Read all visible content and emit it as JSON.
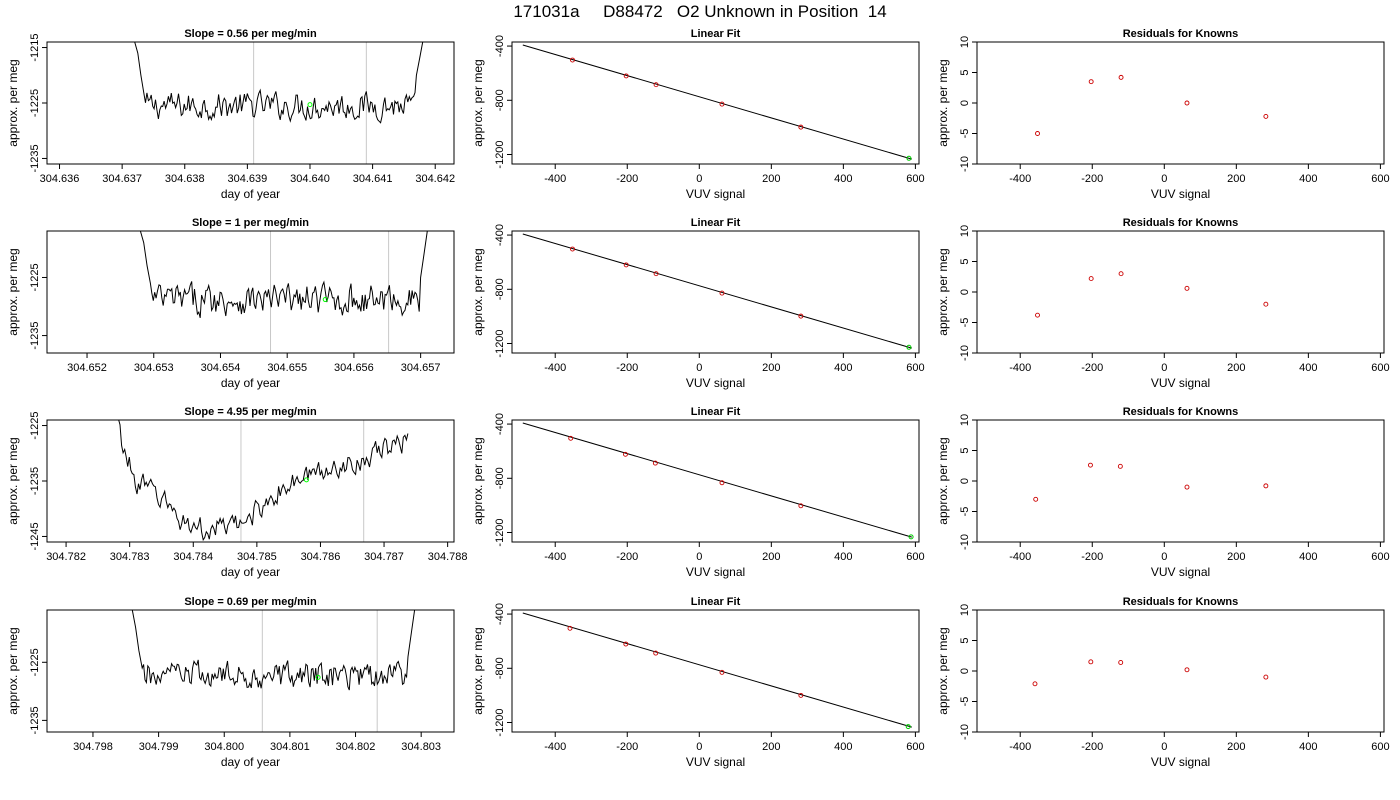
{
  "figure": {
    "title": "171031a     D88472   O2 Unknown in Position  14"
  },
  "chart_data": [
    {
      "type": "line",
      "title": "Slope =  0.56  per meg/min",
      "xlabel": "day of year",
      "ylabel": "approx. per meg",
      "xlim": [
        304.6358,
        304.6423
      ],
      "ylim": [
        -1236,
        -1214
      ],
      "xticks": [
        "304.636",
        "304.637",
        "304.638",
        "304.639",
        "304.640",
        "304.641",
        "304.642"
      ],
      "yticks": [
        "-1215",
        "-1225",
        "-1235"
      ],
      "ytick_values": [
        -1215,
        -1225,
        -1235
      ],
      "window": [
        304.6391,
        304.6409
      ],
      "series_color": "#000000",
      "trace": {
        "x_start": 304.6372,
        "x_end": 304.6418,
        "baseline": -1225.5,
        "amplitude": 2.2,
        "trend": 0,
        "left_edge": [
          [
            304.6372,
            -1214
          ],
          [
            304.63725,
            -1216
          ],
          [
            304.6373,
            -1220
          ],
          [
            304.63735,
            -1223.5
          ]
        ],
        "right_edge": [
          [
            304.6417,
            -1220
          ],
          [
            304.64175,
            -1217
          ],
          [
            304.6418,
            -1214
          ]
        ]
      },
      "unknown_point": {
        "x": 304.64,
        "y": -1225.3,
        "color": "#00ff00"
      }
    },
    {
      "type": "line",
      "title": "Linear Fit",
      "xlabel": "VUV signal",
      "ylabel": "approx. per meg",
      "xlim": [
        -520,
        610
      ],
      "ylim": [
        -1270,
        -370
      ],
      "xticks": [
        "-400",
        "-200",
        "0",
        "200",
        "400",
        "600"
      ],
      "yticks": [
        "-400",
        "-800",
        "-1200"
      ],
      "ytick_values": [
        -400,
        -800,
        -1200
      ],
      "fit_line": {
        "x": [
          -490,
          590
        ],
        "y": [
          -392,
          -1234
        ]
      },
      "points": {
        "x": [
          -352,
          -203,
          -120,
          63,
          282
        ],
        "y": [
          -503,
          -620,
          -685,
          -828,
          -998
        ],
        "color": "#cc0000"
      },
      "unknown_point": {
        "x": 582,
        "y": -1228,
        "color": "#00cc00"
      }
    },
    {
      "type": "scatter",
      "title": "Residuals for Knowns",
      "xlabel": "VUV signal",
      "ylabel": "approx. per meg",
      "xlim": [
        -520,
        610
      ],
      "ylim": [
        -10,
        10
      ],
      "xticks": [
        "-400",
        "-200",
        "0",
        "200",
        "400",
        "600"
      ],
      "yticks": [
        "10",
        "5",
        "0",
        "-5",
        "-10"
      ],
      "ytick_values": [
        10,
        5,
        0,
        -5,
        -10
      ],
      "points": {
        "x": [
          -352,
          -203,
          -120,
          63,
          282
        ],
        "y": [
          -5,
          3.5,
          4.2,
          0,
          -2.2
        ],
        "color": "#cc0000"
      }
    },
    {
      "type": "line",
      "title": "Slope =  1  per meg/min",
      "xlabel": "day of year",
      "ylabel": "approx. per meg",
      "xlim": [
        304.6514,
        304.6575
      ],
      "ylim": [
        -1238,
        -1217
      ],
      "xticks": [
        "304.652",
        "304.653",
        "304.654",
        "304.655",
        "304.656",
        "304.657"
      ],
      "yticks": [
        "-1225",
        "-1235"
      ],
      "ytick_values": [
        -1225,
        -1235
      ],
      "window": [
        304.65475,
        304.65652
      ],
      "series_color": "#000000",
      "trace": {
        "x_start": 304.6528,
        "x_end": 304.6571,
        "baseline": -1228.8,
        "amplitude": 2.4,
        "trend": 0,
        "left_edge": [
          [
            304.6528,
            -1217
          ],
          [
            304.65285,
            -1219
          ],
          [
            304.6529,
            -1223
          ],
          [
            304.65295,
            -1226
          ]
        ],
        "right_edge": [
          [
            304.657,
            -1225
          ],
          [
            304.65705,
            -1221
          ],
          [
            304.6571,
            -1217
          ]
        ]
      },
      "unknown_point": {
        "x": 304.65557,
        "y": -1228.8,
        "color": "#00ff00"
      }
    },
    {
      "type": "line",
      "title": "Linear Fit",
      "xlabel": "VUV signal",
      "ylabel": "approx. per meg",
      "xlim": [
        -520,
        610
      ],
      "ylim": [
        -1270,
        -370
      ],
      "xticks": [
        "-400",
        "-200",
        "0",
        "200",
        "400",
        "600"
      ],
      "yticks": [
        "-400",
        "-800",
        "-1200"
      ],
      "ytick_values": [
        -400,
        -800,
        -1200
      ],
      "fit_line": {
        "x": [
          -490,
          590
        ],
        "y": [
          -392,
          -1234
        ]
      },
      "points": {
        "x": [
          -352,
          -203,
          -120,
          63,
          282
        ],
        "y": [
          -503,
          -620,
          -685,
          -828,
          -998
        ],
        "color": "#cc0000"
      },
      "unknown_point": {
        "x": 582,
        "y": -1228,
        "color": "#00cc00"
      }
    },
    {
      "type": "scatter",
      "title": "Residuals for Knowns",
      "xlabel": "VUV signal",
      "ylabel": "approx. per meg",
      "xlim": [
        -520,
        610
      ],
      "ylim": [
        -10,
        10
      ],
      "xticks": [
        "-400",
        "-200",
        "0",
        "200",
        "400",
        "600"
      ],
      "yticks": [
        "10",
        "5",
        "0",
        "-5",
        "-10"
      ],
      "ytick_values": [
        10,
        5,
        0,
        -5,
        -10
      ],
      "points": {
        "x": [
          -352,
          -203,
          -120,
          63,
          282
        ],
        "y": [
          -3.8,
          2.2,
          3,
          0.6,
          -2
        ],
        "color": "#cc0000"
      }
    },
    {
      "type": "line",
      "title": "Slope =  4.95  per meg/min",
      "xlabel": "day of year",
      "ylabel": "approx. per meg",
      "xlim": [
        304.7817,
        304.7881
      ],
      "ylim": [
        -1246,
        -1224
      ],
      "xticks": [
        "304.782",
        "304.783",
        "304.784",
        "304.785",
        "304.786",
        "304.787",
        "304.788"
      ],
      "yticks": [
        "-1225",
        "-1235",
        "-1245"
      ],
      "ytick_values": [
        -1225,
        -1235,
        -1245
      ],
      "window": [
        304.78475,
        304.78668
      ],
      "series_color": "#000000",
      "trace": {
        "x_start": 304.7828,
        "x_end": 304.7874,
        "baseline": -1236,
        "amplitude": 1.8,
        "trend": 0,
        "profile": [
          [
            304.7828,
            -1224
          ],
          [
            304.78295,
            -1231
          ],
          [
            304.7831,
            -1235
          ],
          [
            304.7835,
            -1238
          ],
          [
            304.7838,
            -1242
          ],
          [
            304.7842,
            -1244
          ],
          [
            304.78475,
            -1243
          ],
          [
            304.7852,
            -1238
          ],
          [
            304.7858,
            -1234
          ],
          [
            304.7864,
            -1232
          ],
          [
            304.7869,
            -1230
          ],
          [
            304.7873,
            -1228
          ],
          [
            304.7874,
            -1224
          ]
        ]
      },
      "unknown_point": {
        "x": 304.78578,
        "y": -1234.8,
        "color": "#00ff00"
      }
    },
    {
      "type": "line",
      "title": "Linear Fit",
      "xlabel": "VUV signal",
      "ylabel": "approx. per meg",
      "xlim": [
        -520,
        610
      ],
      "ylim": [
        -1270,
        -370
      ],
      "xticks": [
        "-400",
        "-200",
        "0",
        "200",
        "400",
        "600"
      ],
      "yticks": [
        "-400",
        "-800",
        "-1200"
      ],
      "ytick_values": [
        -400,
        -800,
        -1200
      ],
      "fit_line": {
        "x": [
          -490,
          590
        ],
        "y": [
          -392,
          -1234
        ]
      },
      "points": {
        "x": [
          -357,
          -205,
          -122,
          63,
          282
        ],
        "y": [
          -505,
          -623,
          -688,
          -833,
          -1003
        ],
        "color": "#cc0000"
      },
      "unknown_point": {
        "x": 588,
        "y": -1232,
        "color": "#00cc00"
      }
    },
    {
      "type": "scatter",
      "title": "Residuals for Knowns",
      "xlabel": "VUV signal",
      "ylabel": "approx. per meg",
      "xlim": [
        -520,
        610
      ],
      "ylim": [
        -10,
        10
      ],
      "xticks": [
        "-400",
        "-200",
        "0",
        "200",
        "400",
        "600"
      ],
      "yticks": [
        "10",
        "5",
        "0",
        "-5",
        "-10"
      ],
      "ytick_values": [
        10,
        5,
        0,
        -5,
        -10
      ],
      "points": {
        "x": [
          -357,
          -205,
          -122,
          63,
          282
        ],
        "y": [
          -3,
          2.6,
          2.4,
          -1,
          -0.8
        ],
        "color": "#cc0000"
      }
    },
    {
      "type": "line",
      "title": "Slope =  0.69  per meg/min",
      "xlabel": "day of year",
      "ylabel": "approx. per meg",
      "xlim": [
        304.7973,
        304.8035
      ],
      "ylim": [
        -1237,
        -1216
      ],
      "xticks": [
        "304.798",
        "304.799",
        "304.800",
        "304.801",
        "304.802",
        "304.803"
      ],
      "yticks": [
        "-1225",
        "-1235"
      ],
      "ytick_values": [
        -1225,
        -1235
      ],
      "window": [
        304.80058,
        304.80233
      ],
      "series_color": "#000000",
      "trace": {
        "x_start": 304.7986,
        "x_end": 304.8029,
        "baseline": -1227.3,
        "amplitude": 2.1,
        "trend": 0,
        "left_edge": [
          [
            304.7986,
            -1216
          ],
          [
            304.79865,
            -1219
          ],
          [
            304.7987,
            -1223
          ],
          [
            304.79875,
            -1226
          ]
        ],
        "right_edge": [
          [
            304.8028,
            -1224
          ],
          [
            304.80285,
            -1220
          ],
          [
            304.8029,
            -1216
          ]
        ]
      },
      "unknown_point": {
        "x": 304.80143,
        "y": -1227.6,
        "color": "#00ff00"
      }
    },
    {
      "type": "line",
      "title": "Linear Fit",
      "xlabel": "VUV signal",
      "ylabel": "approx. per meg",
      "xlim": [
        -520,
        610
      ],
      "ylim": [
        -1270,
        -370
      ],
      "xticks": [
        "-400",
        "-200",
        "0",
        "200",
        "400",
        "600"
      ],
      "yticks": [
        "-400",
        "-800",
        "-1200"
      ],
      "ytick_values": [
        -400,
        -800,
        -1200
      ],
      "fit_line": {
        "x": [
          -490,
          590
        ],
        "y": [
          -392,
          -1234
        ]
      },
      "points": {
        "x": [
          -359,
          -204,
          -121,
          63,
          282
        ],
        "y": [
          -505,
          -621,
          -688,
          -830,
          -1000
        ],
        "color": "#cc0000"
      },
      "unknown_point": {
        "x": 580,
        "y": -1230,
        "color": "#00cc00"
      }
    },
    {
      "type": "scatter",
      "title": "Residuals for Knowns",
      "xlabel": "VUV signal",
      "ylabel": "approx. per meg",
      "xlim": [
        -520,
        610
      ],
      "ylim": [
        -10,
        10
      ],
      "xticks": [
        "-400",
        "-200",
        "0",
        "200",
        "400",
        "600"
      ],
      "yticks": [
        "10",
        "5",
        "0",
        "-5",
        "-10"
      ],
      "ytick_values": [
        10,
        5,
        0,
        -5,
        -10
      ],
      "points": {
        "x": [
          -359,
          -204,
          -121,
          63,
          282
        ],
        "y": [
          -2.1,
          1.5,
          1.4,
          0.2,
          -1
        ],
        "color": "#cc0000"
      }
    }
  ]
}
